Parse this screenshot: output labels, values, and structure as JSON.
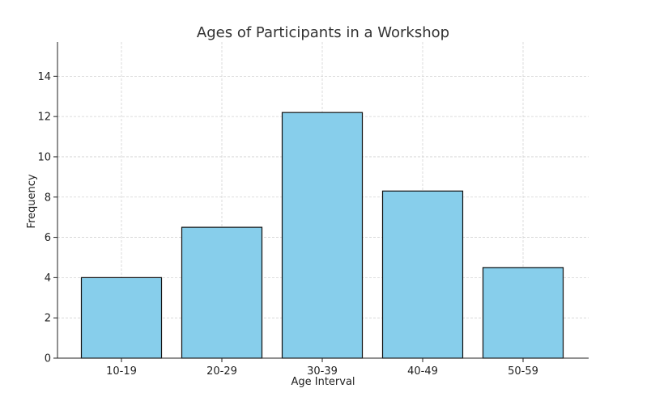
{
  "chart_data": {
    "type": "bar",
    "title": "Ages of Participants in a Workshop",
    "xlabel": "Age Interval",
    "ylabel": "Frequency",
    "categories": [
      "10-19",
      "20-29",
      "30-39",
      "40-49",
      "50-59"
    ],
    "values": [
      4,
      6.5,
      12.2,
      8.3,
      4.5
    ],
    "ylim": [
      0,
      15.7
    ],
    "yticks": [
      "0",
      "2",
      "4",
      "6",
      "8",
      "10",
      "12",
      "14"
    ],
    "grid": true,
    "bar_color": "#87CEEB",
    "edge_color": "#111111",
    "grid_color": "#d3d3d3"
  }
}
